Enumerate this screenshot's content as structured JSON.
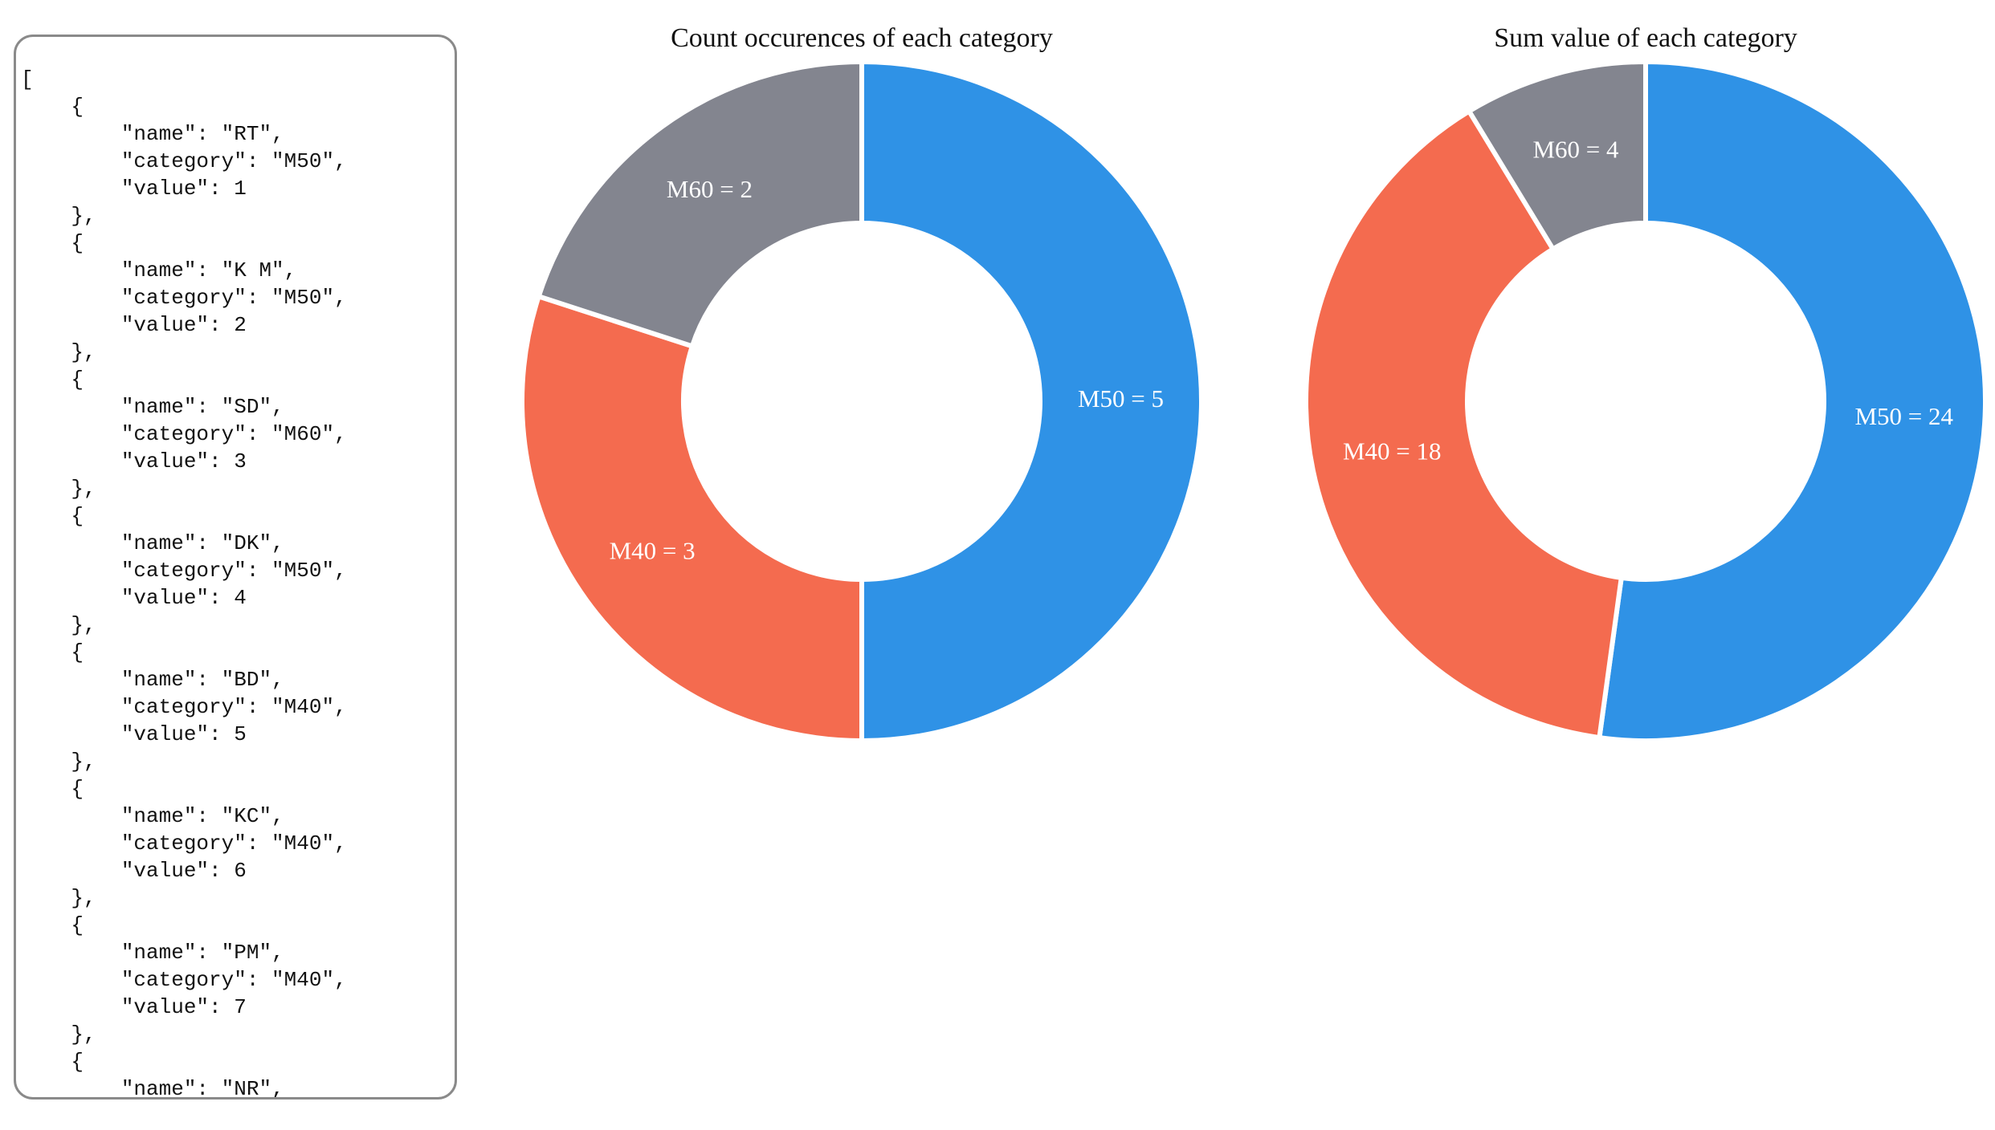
{
  "json_panel": {
    "text": "[\n    {\n        \"name\": \"RT\",\n        \"category\": \"M50\",\n        \"value\": 1\n    },\n    {\n        \"name\": \"K M\",\n        \"category\": \"M50\",\n        \"value\": 2\n    },\n    {\n        \"name\": \"SD\",\n        \"category\": \"M60\",\n        \"value\": 3\n    },\n    {\n        \"name\": \"DK\",\n        \"category\": \"M50\",\n        \"value\": 4\n    },\n    {\n        \"name\": \"BD\",\n        \"category\": \"M40\",\n        \"value\": 5\n    },\n    {\n        \"name\": \"KC\",\n        \"category\": \"M40\",\n        \"value\": 6\n    },\n    {\n        \"name\": \"PM\",\n        \"category\": \"M40\",\n        \"value\": 7\n    },\n    {\n        \"name\": \"NR\","
  },
  "colors": {
    "M50": "#2f92e6",
    "M40": "#f46b4f",
    "M60": "#83858f"
  },
  "chart_data": [
    {
      "type": "pie",
      "title": "Count occurences of each category",
      "categories": [
        "M50",
        "M40",
        "M60"
      ],
      "values": [
        5,
        3,
        2
      ],
      "labels": [
        "M50 = 5",
        "M40 = 3",
        "M60 = 2"
      ]
    },
    {
      "type": "pie",
      "title": "Sum value of each category",
      "categories": [
        "M50",
        "M40",
        "M60"
      ],
      "values": [
        24,
        18,
        4
      ],
      "labels": [
        "M50 = 24",
        "M40 = 18",
        "M60 = 4"
      ]
    }
  ]
}
